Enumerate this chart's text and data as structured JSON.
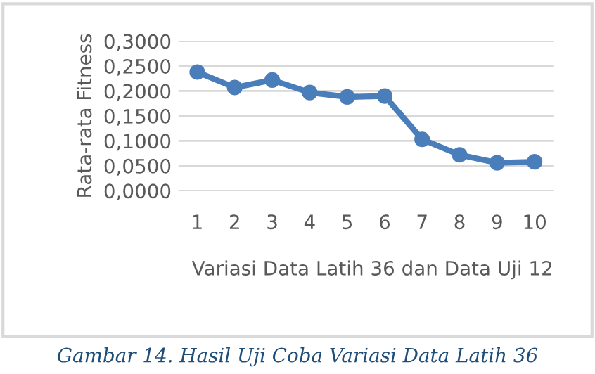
{
  "chart_data": {
    "type": "line",
    "xlabel": "Variasi Data Latih 36 dan Data Uji 12",
    "ylabel": "Rata-rata Fitness",
    "categories": [
      "1",
      "2",
      "3",
      "4",
      "5",
      "6",
      "7",
      "8",
      "9",
      "10"
    ],
    "series": [
      {
        "color": "#4a7ebb",
        "values": [
          0.238,
          0.207,
          0.222,
          0.197,
          0.188,
          0.19,
          0.103,
          0.072,
          0.056,
          0.058
        ]
      }
    ],
    "ylim": [
      0,
      0.3
    ],
    "yticks": [
      {
        "value": 0,
        "label": "0,0000"
      },
      {
        "value": 0.05,
        "label": "0,0500"
      },
      {
        "value": 0.1,
        "label": "0,1000"
      },
      {
        "value": 0.15,
        "label": "0,1500"
      },
      {
        "value": 0.2,
        "label": "0,2000"
      },
      {
        "value": 0.25,
        "label": "0,2500"
      },
      {
        "value": 0.3,
        "label": "0,3000"
      }
    ],
    "grid": "y",
    "marker": "circle",
    "line_style": "solid",
    "annotations": [
      "Gambar 14. Hasil Uji Coba Variasi Data Latih 36"
    ]
  }
}
